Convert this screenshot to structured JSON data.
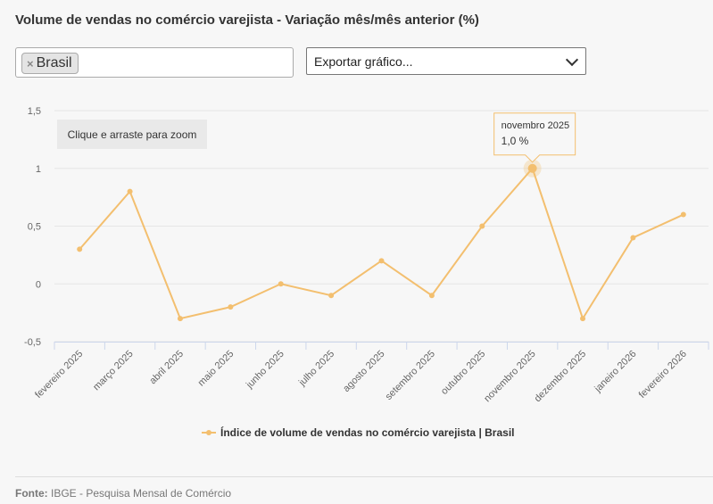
{
  "title": "Volume de vendas no comércio varejista - Variação mês/mês anterior (%)",
  "filter": {
    "chip_label": "Brasil",
    "chip_remove": "×"
  },
  "export": {
    "label": "Exportar gráfico..."
  },
  "zoom_hint": "Clique e arraste para zoom",
  "tooltip": {
    "title": "novembro 2025",
    "value": "1,0 %"
  },
  "footer": {
    "label": "Fonte:",
    "text": " IBGE - Pesquisa Mensal de Comércio"
  },
  "colors": {
    "series": "#f3bf6f",
    "grid": "#e6e6e6",
    "axis": "#ccd6eb"
  },
  "chart_data": {
    "type": "line",
    "categories": [
      "fevereiro 2025",
      "março 2025",
      "abril 2025",
      "maio 2025",
      "junho 2025",
      "julho 2025",
      "agosto 2025",
      "setembro 2025",
      "outubro 2025",
      "novembro 2025",
      "dezembro 2025",
      "janeiro 2026",
      "fevereiro 2026"
    ],
    "series": [
      {
        "name": "Índice de volume de vendas no comércio varejista | Brasil",
        "values": [
          0.3,
          0.8,
          -0.3,
          -0.2,
          0.0,
          -0.1,
          0.2,
          -0.1,
          0.5,
          1.0,
          -0.3,
          0.4,
          0.6
        ]
      }
    ],
    "ylim": [
      -0.5,
      1.5
    ],
    "yticks": [
      "1,5",
      "1",
      "0,5",
      "0",
      "-0,5"
    ],
    "ytick_values": [
      1.5,
      1.0,
      0.5,
      0.0,
      -0.5
    ],
    "highlight_index": 9,
    "legend": "bottom-center",
    "grid": true
  }
}
